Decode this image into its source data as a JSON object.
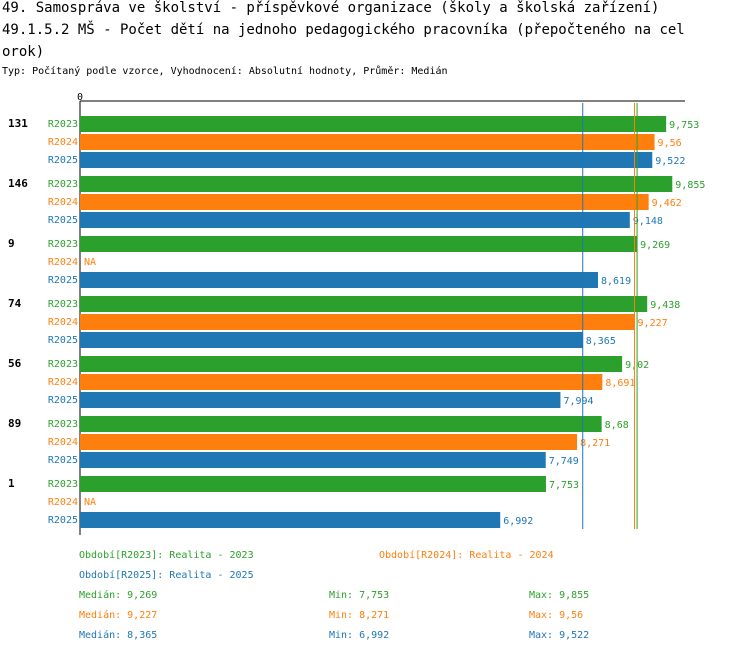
{
  "titles": {
    "line1": "49. Samospráva ve školství - příspěvkové organizace (školy a školská zařízení)",
    "line2": "49.1.5.2 MŠ - Počet dětí na jednoho pedagogického pracovníka (přepočteného na cel",
    "line3": "orok)",
    "subtitle": "Typ: Počítaný podle vzorce, Vyhodnocení: Absolutní hodnoty, Průměr: Medián"
  },
  "colors": {
    "R2023": "#2ca02c",
    "R2024": "#ff7f0e",
    "R2025": "#1f77b4"
  },
  "chart_data": {
    "type": "bar",
    "orientation": "horizontal",
    "axis_zero_label": "0",
    "series_names": [
      "R2023",
      "R2024",
      "R2025"
    ],
    "na_label": "NA",
    "groups": [
      {
        "label": "131",
        "values": [
          9.753,
          9.56,
          9.522
        ],
        "labels": [
          "9,753",
          "9,56",
          "9,522"
        ]
      },
      {
        "label": "146",
        "values": [
          9.855,
          9.462,
          9.148
        ],
        "labels": [
          "9,855",
          "9,462",
          "9,148"
        ]
      },
      {
        "label": "9",
        "values": [
          9.269,
          null,
          8.619
        ],
        "labels": [
          "9,269",
          "NA",
          "8,619"
        ]
      },
      {
        "label": "74",
        "values": [
          9.438,
          9.227,
          8.365
        ],
        "labels": [
          "9,438",
          "9,227",
          "8,365"
        ]
      },
      {
        "label": "56",
        "values": [
          9.02,
          8.691,
          7.994
        ],
        "labels": [
          "9,02",
          "8,691",
          "7,994"
        ]
      },
      {
        "label": "89",
        "values": [
          8.68,
          8.271,
          7.749
        ],
        "labels": [
          "8,68",
          "8,271",
          "7,749"
        ]
      },
      {
        "label": "1",
        "values": [
          7.753,
          null,
          6.992
        ],
        "labels": [
          "7,753",
          "NA",
          "6,992"
        ]
      }
    ],
    "median_lines": {
      "R2023": 9.269,
      "R2024": 9.227,
      "R2025": 8.365
    }
  },
  "legend": {
    "period_2023": "Období[R2023]: Realita - 2023",
    "period_2024": "Období[R2024]: Realita - 2024",
    "period_2025": "Období[R2025]: Realita - 2025",
    "stats": [
      {
        "median": "Medián: 9,269",
        "min": "Min: 7,753",
        "max": "Max: 9,855"
      },
      {
        "median": "Medián: 9,227",
        "min": "Min: 8,271",
        "max": "Max: 9,56"
      },
      {
        "median": "Medián: 8,365",
        "min": "Min: 6,992",
        "max": "Max: 9,522"
      }
    ]
  }
}
